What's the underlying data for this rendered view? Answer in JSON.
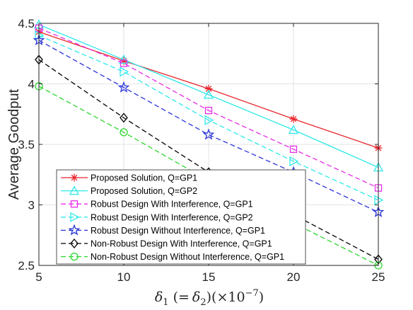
{
  "chart_data": {
    "type": "line",
    "title": "",
    "ylabel": "Average Goodput",
    "xlabel": {
      "symbol": "δ",
      "subscript": "1",
      "paren_open": "(=",
      "symbol2": "δ",
      "subscript2": "2",
      "paren_close": ")(×10",
      "exponent": "−7",
      "close": ")"
    },
    "x": [
      5,
      10,
      15,
      20,
      25
    ],
    "xlim": [
      5,
      25
    ],
    "ylim": [
      2.5,
      4.5
    ],
    "xticks": [
      "5",
      "10",
      "15",
      "20",
      "25"
    ],
    "yticks": [
      "2.5",
      "3",
      "3.5",
      "4",
      "4.5"
    ],
    "grid": true,
    "legend_position": "lower-left",
    "series": [
      {
        "name": "Proposed Solution, Q=GP1",
        "values": [
          4.43,
          4.19,
          3.96,
          3.71,
          3.47
        ],
        "color": "#e8262d",
        "dash": "solid",
        "marker": "asterisk"
      },
      {
        "name": "Proposed Solution, Q=GP2",
        "values": [
          4.49,
          4.2,
          3.91,
          3.62,
          3.31
        ],
        "color": "#2ee8ea",
        "dash": "solid",
        "marker": "triangle-up"
      },
      {
        "name": "Robust Design With Interference, Q=GP1",
        "values": [
          4.46,
          4.17,
          3.78,
          3.46,
          3.14
        ],
        "color": "#e62ee6",
        "dash": "dashed",
        "marker": "square"
      },
      {
        "name": "Robust Design With Interference, Q=GP2",
        "values": [
          4.4,
          4.1,
          3.7,
          3.36,
          3.04
        ],
        "color": "#2ee8ea",
        "dash": "dashed",
        "marker": "triangle-right"
      },
      {
        "name": "Robust Design Without Interference, Q=GP1",
        "values": [
          4.36,
          3.97,
          3.58,
          3.27,
          2.94
        ],
        "color": "#2b35d9",
        "dash": "dashed",
        "marker": "pentagram"
      },
      {
        "name": "Non-Robust Design With Interference, Q=GP1",
        "values": [
          4.2,
          3.72,
          3.27,
          2.92,
          2.55
        ],
        "color": "#000000",
        "dash": "dashed",
        "marker": "diamond"
      },
      {
        "name": "Non-Robust Design Without Interference, Q=GP1",
        "values": [
          3.98,
          3.6,
          3.2,
          2.85,
          2.5
        ],
        "color": "#2ed62e",
        "dash": "dashed",
        "marker": "circle"
      }
    ]
  }
}
